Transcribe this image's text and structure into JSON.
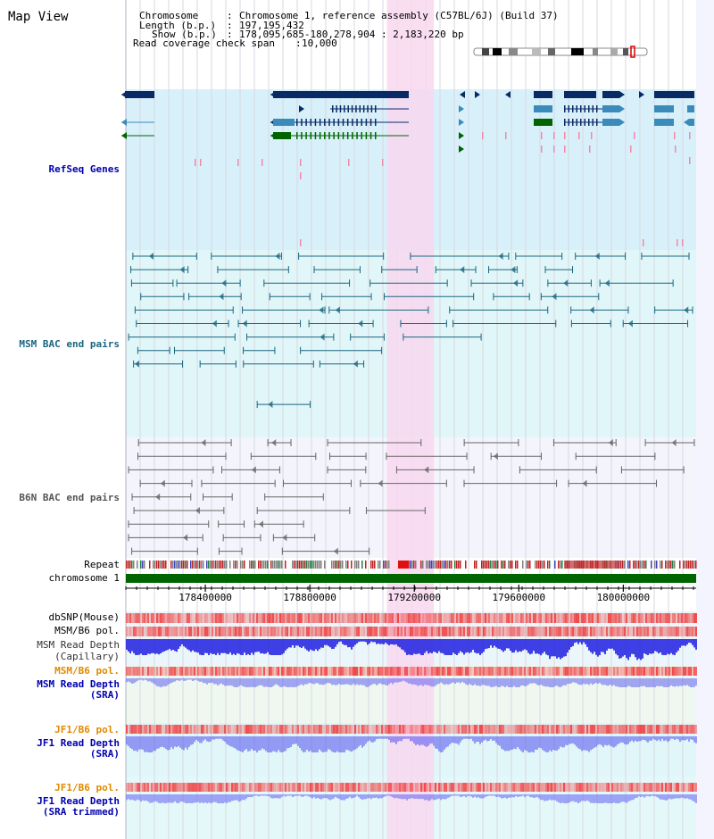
{
  "title": "Map View",
  "info": [
    {
      "label": "Chromosome",
      "value": "Chromosome 1, reference assembly (C57BL/6J) (Build 37)"
    },
    {
      "label": "Length (b.p.)",
      "value": "197,195,432"
    },
    {
      "label": "Show (b.p.)",
      "value": "178,095,685-180,278,904 : 2,183,220 bp"
    },
    {
      "label": "Read coverage check span",
      "value": "10,000"
    }
  ],
  "tracks": [
    {
      "key": "refseq",
      "label": "RefSeq Genes",
      "color": "#0000b0"
    },
    {
      "key": "msm_bac",
      "label": "MSM BAC end pairs",
      "color": "#1a6680"
    },
    {
      "key": "b6n_bac",
      "label": "B6N BAC end pairs",
      "color": "#555555"
    },
    {
      "key": "repeat",
      "label": "Repeat",
      "color": "#000000"
    },
    {
      "key": "chromosome",
      "label": "chromosome 1",
      "color": "#000000"
    },
    {
      "key": "dbsnp",
      "label": "dbSNP(Mouse)",
      "color": "#000000"
    },
    {
      "key": "msm_b6_pol_1",
      "label": "MSM/B6 pol.",
      "color": "#000000"
    },
    {
      "key": "msm_depth_cap_1",
      "label": "MSM Read Depth",
      "color": "#333333"
    },
    {
      "key": "msm_depth_cap_2",
      "label": "(Capillary)",
      "color": "#333333"
    },
    {
      "key": "msm_b6_pol_2",
      "label": "MSM/B6 pol.",
      "color": "#e08a00"
    },
    {
      "key": "msm_depth_sra_1",
      "label": "MSM Read Depth",
      "color": "#0000b0"
    },
    {
      "key": "msm_depth_sra_2",
      "label": "(SRA)",
      "color": "#0000b0"
    },
    {
      "key": "jf1_b6_pol_1",
      "label": "JF1/B6 pol.",
      "color": "#e08a00"
    },
    {
      "key": "jf1_depth_sra_1",
      "label": "JF1 Read Depth",
      "color": "#0000b0"
    },
    {
      "key": "jf1_depth_sra_2",
      "label": "(SRA)",
      "color": "#0000b0"
    },
    {
      "key": "jf1_b6_pol_2",
      "label": "JF1/B6 pol.",
      "color": "#e08a00"
    },
    {
      "key": "jf1_depth_trim_1",
      "label": "JF1 Read Depth",
      "color": "#0000b0"
    },
    {
      "key": "jf1_depth_trim_2",
      "label": "(SRA trimmed)",
      "color": "#0000b0"
    }
  ],
  "axis": {
    "range_start": 178095685,
    "range_end": 180278904,
    "ticks": [
      {
        "label": "178400000",
        "value": 178400000
      },
      {
        "label": "178800000",
        "value": 178800000
      },
      {
        "label": "179200000",
        "value": 179200000
      },
      {
        "label": "179600000",
        "value": 179600000
      },
      {
        "label": "180000000",
        "value": 180000000
      }
    ]
  },
  "highlight": {
    "start": 179095000,
    "end": 179275000,
    "color": "#f8d8f0"
  },
  "colors": {
    "refseq_dark": "#0a2a66",
    "refseq_mid": "#3a8aba",
    "refseq_green": "#006400",
    "refseq_pink": "#f08aa8",
    "msm_bac": "#1a6680",
    "b6n_bac": "#666666",
    "chromosome": "#006400",
    "depth_blue": "#2020e0",
    "pol_red": "#f04040"
  }
}
